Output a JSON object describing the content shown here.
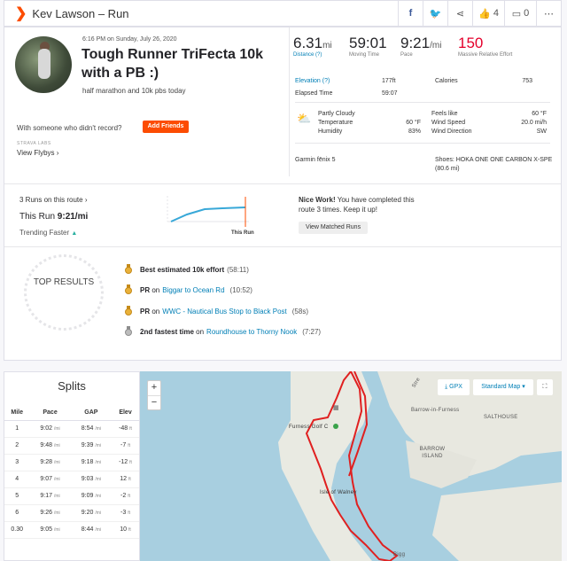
{
  "header": {
    "title": "Kev Lawson – Run",
    "kudos_count": "4",
    "comment_count": "0"
  },
  "activity": {
    "datetime": "6:16 PM on Sunday, July 26, 2020",
    "title": "Tough Runner TriFecta 10k with a PB :)",
    "description": "half marathon and 10k pbs today",
    "with_someone": "With someone who didn't record?",
    "add_friends": "Add Friends",
    "labs": "STRAVA LABS",
    "flyby": "View Flybys ›"
  },
  "stats": {
    "distance": {
      "value": "6.31",
      "unit": "mi",
      "label": "Distance (?)"
    },
    "moving_time": {
      "value": "59:01",
      "label": "Moving Time"
    },
    "pace": {
      "value": "9:21",
      "unit": "/mi",
      "label": "Pace"
    },
    "effort": {
      "value": "150",
      "label": "Massive Relative Effort"
    },
    "elevation_label": "Elevation (?)",
    "elevation_value": "177ft",
    "calories_label": "Calories",
    "calories_value": "753",
    "elapsed_label": "Elapsed Time",
    "elapsed_value": "59:07"
  },
  "weather": {
    "condition": "Partly Cloudy",
    "temperature_label": "Temperature",
    "temperature": "60 °F",
    "humidity_label": "Humidity",
    "humidity": "83%",
    "feels_like_label": "Feels like",
    "feels_like": "60 °F",
    "wind_speed_label": "Wind Speed",
    "wind_speed": "20.0 mi/h",
    "wind_dir_label": "Wind Direction",
    "wind_dir": "SW"
  },
  "gear": {
    "device": "Garmin fēnix 5",
    "shoes": "Shoes: HOKA ONE ONE CARBON X-SPE",
    "shoes_distance": "(80.6 mi)"
  },
  "route": {
    "runs_on_route": "3 Runs on this route",
    "this_run_label": "This Run",
    "this_run_pace": "9:21/mi",
    "trending": "Trending Faster",
    "chart_caption": "This Run",
    "nice_work_bold": "Nice Work!",
    "nice_work_text": "You have completed this route 3 times. Keep it up!",
    "view_matched": "View Matched Runs"
  },
  "top_results": {
    "title": "TOP RESULTS",
    "items": [
      {
        "bold": "Best estimated 10k effort",
        "pre": "",
        "link": "",
        "time": "(58:11)"
      },
      {
        "bold": "PR",
        "pre": "on",
        "link": "Biggar to Ocean Rd",
        "time": "(10:52)"
      },
      {
        "bold": "PR",
        "pre": "on",
        "link": "WWC - Nautical Bus Stop to Black Post",
        "time": "(58s)"
      },
      {
        "bold": "2nd fastest time",
        "pre": "on",
        "link": "Roundhouse to Thorny Nook",
        "time": "(7:27)"
      }
    ]
  },
  "splits": {
    "title": "Splits",
    "headers": [
      "Mile",
      "Pace",
      "GAP",
      "Elev"
    ],
    "rows": [
      {
        "mile": "1",
        "pace": "9:02",
        "gap": "8:54",
        "elev": "-48"
      },
      {
        "mile": "2",
        "pace": "9:48",
        "gap": "9:39",
        "elev": "-7"
      },
      {
        "mile": "3",
        "pace": "9:28",
        "gap": "9:18",
        "elev": "-12"
      },
      {
        "mile": "4",
        "pace": "9:07",
        "gap": "9:03",
        "elev": "12"
      },
      {
        "mile": "5",
        "pace": "9:17",
        "gap": "9:09",
        "elev": "-2"
      },
      {
        "mile": "6",
        "pace": "9:26",
        "gap": "9:20",
        "elev": "-3"
      },
      {
        "mile": "0.30",
        "pace": "9:05",
        "gap": "8:44",
        "elev": "10"
      }
    ],
    "pace_unit": "/mi",
    "elev_unit": "ft"
  },
  "map": {
    "gpx": "GPX",
    "style": "Standard Map ▾",
    "labels": {
      "barrow": "Barrow-in-Furness",
      "salthouse": "SALTHOUSE",
      "barrow_island": "BARROW ISLAND",
      "golf": "Furness Golf C",
      "walney": "Isle of Walney",
      "road": "Stre",
      "bottom": "Bigg"
    }
  }
}
